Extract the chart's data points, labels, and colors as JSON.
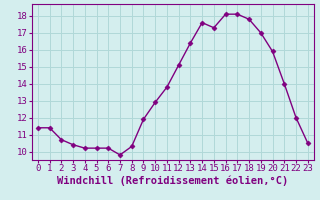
{
  "x": [
    0,
    1,
    2,
    3,
    4,
    5,
    6,
    7,
    8,
    9,
    10,
    11,
    12,
    13,
    14,
    15,
    16,
    17,
    18,
    19,
    20,
    21,
    22,
    23
  ],
  "y": [
    11.4,
    11.4,
    10.7,
    10.4,
    10.2,
    10.2,
    10.2,
    9.8,
    10.3,
    11.9,
    12.9,
    13.8,
    15.1,
    16.4,
    17.6,
    17.3,
    18.1,
    18.1,
    17.8,
    17.0,
    15.9,
    14.0,
    12.0,
    10.5
  ],
  "line_color": "#800080",
  "marker": "D",
  "marker_size": 2.5,
  "bg_color": "#d4eeee",
  "grid_color": "#b0d8d8",
  "xlabel": "Windchill (Refroidissement éolien,°C)",
  "xlabel_fontsize": 7.5,
  "xlim": [
    -0.5,
    23.5
  ],
  "ylim": [
    9.5,
    18.7
  ],
  "yticks": [
    10,
    11,
    12,
    13,
    14,
    15,
    16,
    17,
    18
  ],
  "xticks": [
    0,
    1,
    2,
    3,
    4,
    5,
    6,
    7,
    8,
    9,
    10,
    11,
    12,
    13,
    14,
    15,
    16,
    17,
    18,
    19,
    20,
    21,
    22,
    23
  ],
  "tick_fontsize": 6.5,
  "line_width": 1.0
}
